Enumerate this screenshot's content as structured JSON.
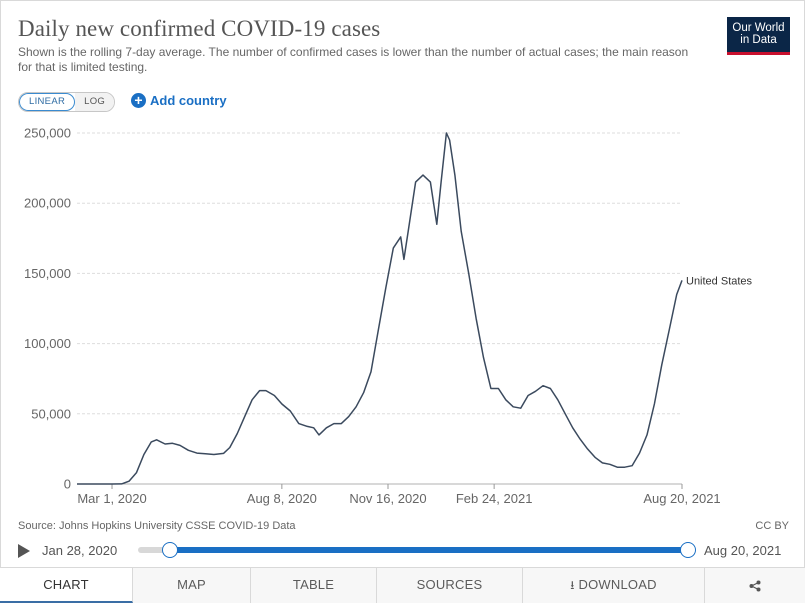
{
  "header": {
    "title": "Daily new confirmed COVID-19 cases",
    "subtitle": "Shown is the rolling 7-day average. The number of confirmed cases is lower than the number of actual cases; the main reason for that is limited testing.",
    "logo_line1": "Our World",
    "logo_line2": "in Data",
    "logo_color": "#0b2647",
    "logo_accent": "#c8102e"
  },
  "controls": {
    "scale_linear": "LINEAR",
    "scale_log": "LOG",
    "active_scale": "linear",
    "add_country": "Add country",
    "accent_color": "#1a6fc4"
  },
  "chart_data": {
    "type": "line",
    "title": "Daily new confirmed COVID-19 cases",
    "y_ticks": [
      0,
      50000,
      100000,
      150000,
      200000,
      250000
    ],
    "y_tick_labels": [
      "0",
      "50,000",
      "100,000",
      "150,000",
      "200,000",
      "250,000"
    ],
    "ylim": [
      0,
      250000
    ],
    "x_tick_labels": [
      "Mar 1, 2020",
      "Aug 8, 2020",
      "Nov 16, 2020",
      "Feb 24, 2021",
      "Aug 20, 2021"
    ],
    "x_tick_dates": [
      "2020-03-01",
      "2020-08-08",
      "2020-11-16",
      "2021-02-24",
      "2021-08-20"
    ],
    "x_range": [
      "2020-01-28",
      "2021-08-20"
    ],
    "grid": "horizontal dashed",
    "line_color": "#3b4a5e",
    "series": [
      {
        "name": "United States",
        "points": [
          [
            "2020-01-28",
            0
          ],
          [
            "2020-03-01",
            5
          ],
          [
            "2020-03-10",
            100
          ],
          [
            "2020-03-17",
            2000
          ],
          [
            "2020-03-24",
            8000
          ],
          [
            "2020-03-31",
            21000
          ],
          [
            "2020-04-07",
            30000
          ],
          [
            "2020-04-12",
            31500
          ],
          [
            "2020-04-20",
            28500
          ],
          [
            "2020-04-27",
            29000
          ],
          [
            "2020-05-04",
            27500
          ],
          [
            "2020-05-12",
            24000
          ],
          [
            "2020-05-20",
            22000
          ],
          [
            "2020-05-28",
            21500
          ],
          [
            "2020-06-05",
            21000
          ],
          [
            "2020-06-14",
            21800
          ],
          [
            "2020-06-20",
            26000
          ],
          [
            "2020-06-27",
            36000
          ],
          [
            "2020-07-04",
            48000
          ],
          [
            "2020-07-11",
            60000
          ],
          [
            "2020-07-18",
            66500
          ],
          [
            "2020-07-24",
            66500
          ],
          [
            "2020-08-01",
            63000
          ],
          [
            "2020-08-08",
            57000
          ],
          [
            "2020-08-16",
            52000
          ],
          [
            "2020-08-24",
            43000
          ],
          [
            "2020-09-01",
            41000
          ],
          [
            "2020-09-07",
            40000
          ],
          [
            "2020-09-12",
            35000
          ],
          [
            "2020-09-19",
            40000
          ],
          [
            "2020-09-26",
            43000
          ],
          [
            "2020-10-03",
            43000
          ],
          [
            "2020-10-10",
            48000
          ],
          [
            "2020-10-17",
            55000
          ],
          [
            "2020-10-24",
            65000
          ],
          [
            "2020-10-31",
            80000
          ],
          [
            "2020-11-07",
            110000
          ],
          [
            "2020-11-14",
            140000
          ],
          [
            "2020-11-21",
            168000
          ],
          [
            "2020-11-28",
            176000
          ],
          [
            "2020-12-01",
            160000
          ],
          [
            "2020-12-05",
            180000
          ],
          [
            "2020-12-12",
            215000
          ],
          [
            "2020-12-19",
            220000
          ],
          [
            "2020-12-26",
            215000
          ],
          [
            "2021-01-01",
            185000
          ],
          [
            "2021-01-05",
            215000
          ],
          [
            "2021-01-10",
            250000
          ],
          [
            "2021-01-13",
            245000
          ],
          [
            "2021-01-18",
            220000
          ],
          [
            "2021-01-24",
            180000
          ],
          [
            "2021-01-31",
            150000
          ],
          [
            "2021-02-07",
            118000
          ],
          [
            "2021-02-14",
            90000
          ],
          [
            "2021-02-21",
            68000
          ],
          [
            "2021-02-28",
            68000
          ],
          [
            "2021-03-07",
            60000
          ],
          [
            "2021-03-14",
            55000
          ],
          [
            "2021-03-21",
            54000
          ],
          [
            "2021-03-28",
            63000
          ],
          [
            "2021-04-04",
            66000
          ],
          [
            "2021-04-11",
            70000
          ],
          [
            "2021-04-18",
            68000
          ],
          [
            "2021-04-25",
            60000
          ],
          [
            "2021-05-02",
            50000
          ],
          [
            "2021-05-09",
            40000
          ],
          [
            "2021-05-16",
            32000
          ],
          [
            "2021-05-23",
            25000
          ],
          [
            "2021-05-30",
            19000
          ],
          [
            "2021-06-06",
            15000
          ],
          [
            "2021-06-13",
            14000
          ],
          [
            "2021-06-20",
            12000
          ],
          [
            "2021-06-27",
            12000
          ],
          [
            "2021-07-04",
            13000
          ],
          [
            "2021-07-11",
            22000
          ],
          [
            "2021-07-18",
            35000
          ],
          [
            "2021-07-25",
            57000
          ],
          [
            "2021-08-01",
            85000
          ],
          [
            "2021-08-08",
            110000
          ],
          [
            "2021-08-15",
            135000
          ],
          [
            "2021-08-20",
            145000
          ]
        ]
      }
    ]
  },
  "source": "Source: Johns Hopkins University CSSE COVID-19 Data",
  "license": "CC BY",
  "timeline": {
    "start": "Jan 28, 2020",
    "end": "Aug 20, 2021"
  },
  "tabs": [
    {
      "label": "CHART",
      "active": true
    },
    {
      "label": "MAP"
    },
    {
      "label": "TABLE"
    },
    {
      "label": "SOURCES"
    },
    {
      "label": "DOWNLOAD"
    }
  ]
}
